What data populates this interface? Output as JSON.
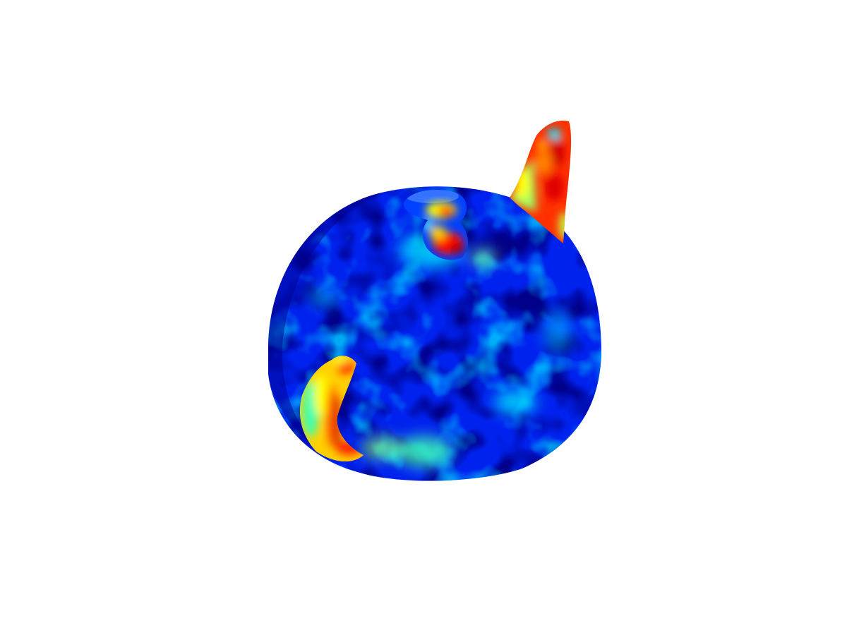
{
  "figure": {
    "subject": "teapot-mesh",
    "render_style": "scalar-field-heatmap",
    "colormap": {
      "name": "jet",
      "stops": [
        "#00007f",
        "#0000ff",
        "#0080ff",
        "#00ffff",
        "#80ff80",
        "#ffff00",
        "#ff8000",
        "#ff0000",
        "#7f0000"
      ]
    },
    "background_color": "#ffffff",
    "parts": [
      "body",
      "lid-knob",
      "spout",
      "handle"
    ]
  }
}
